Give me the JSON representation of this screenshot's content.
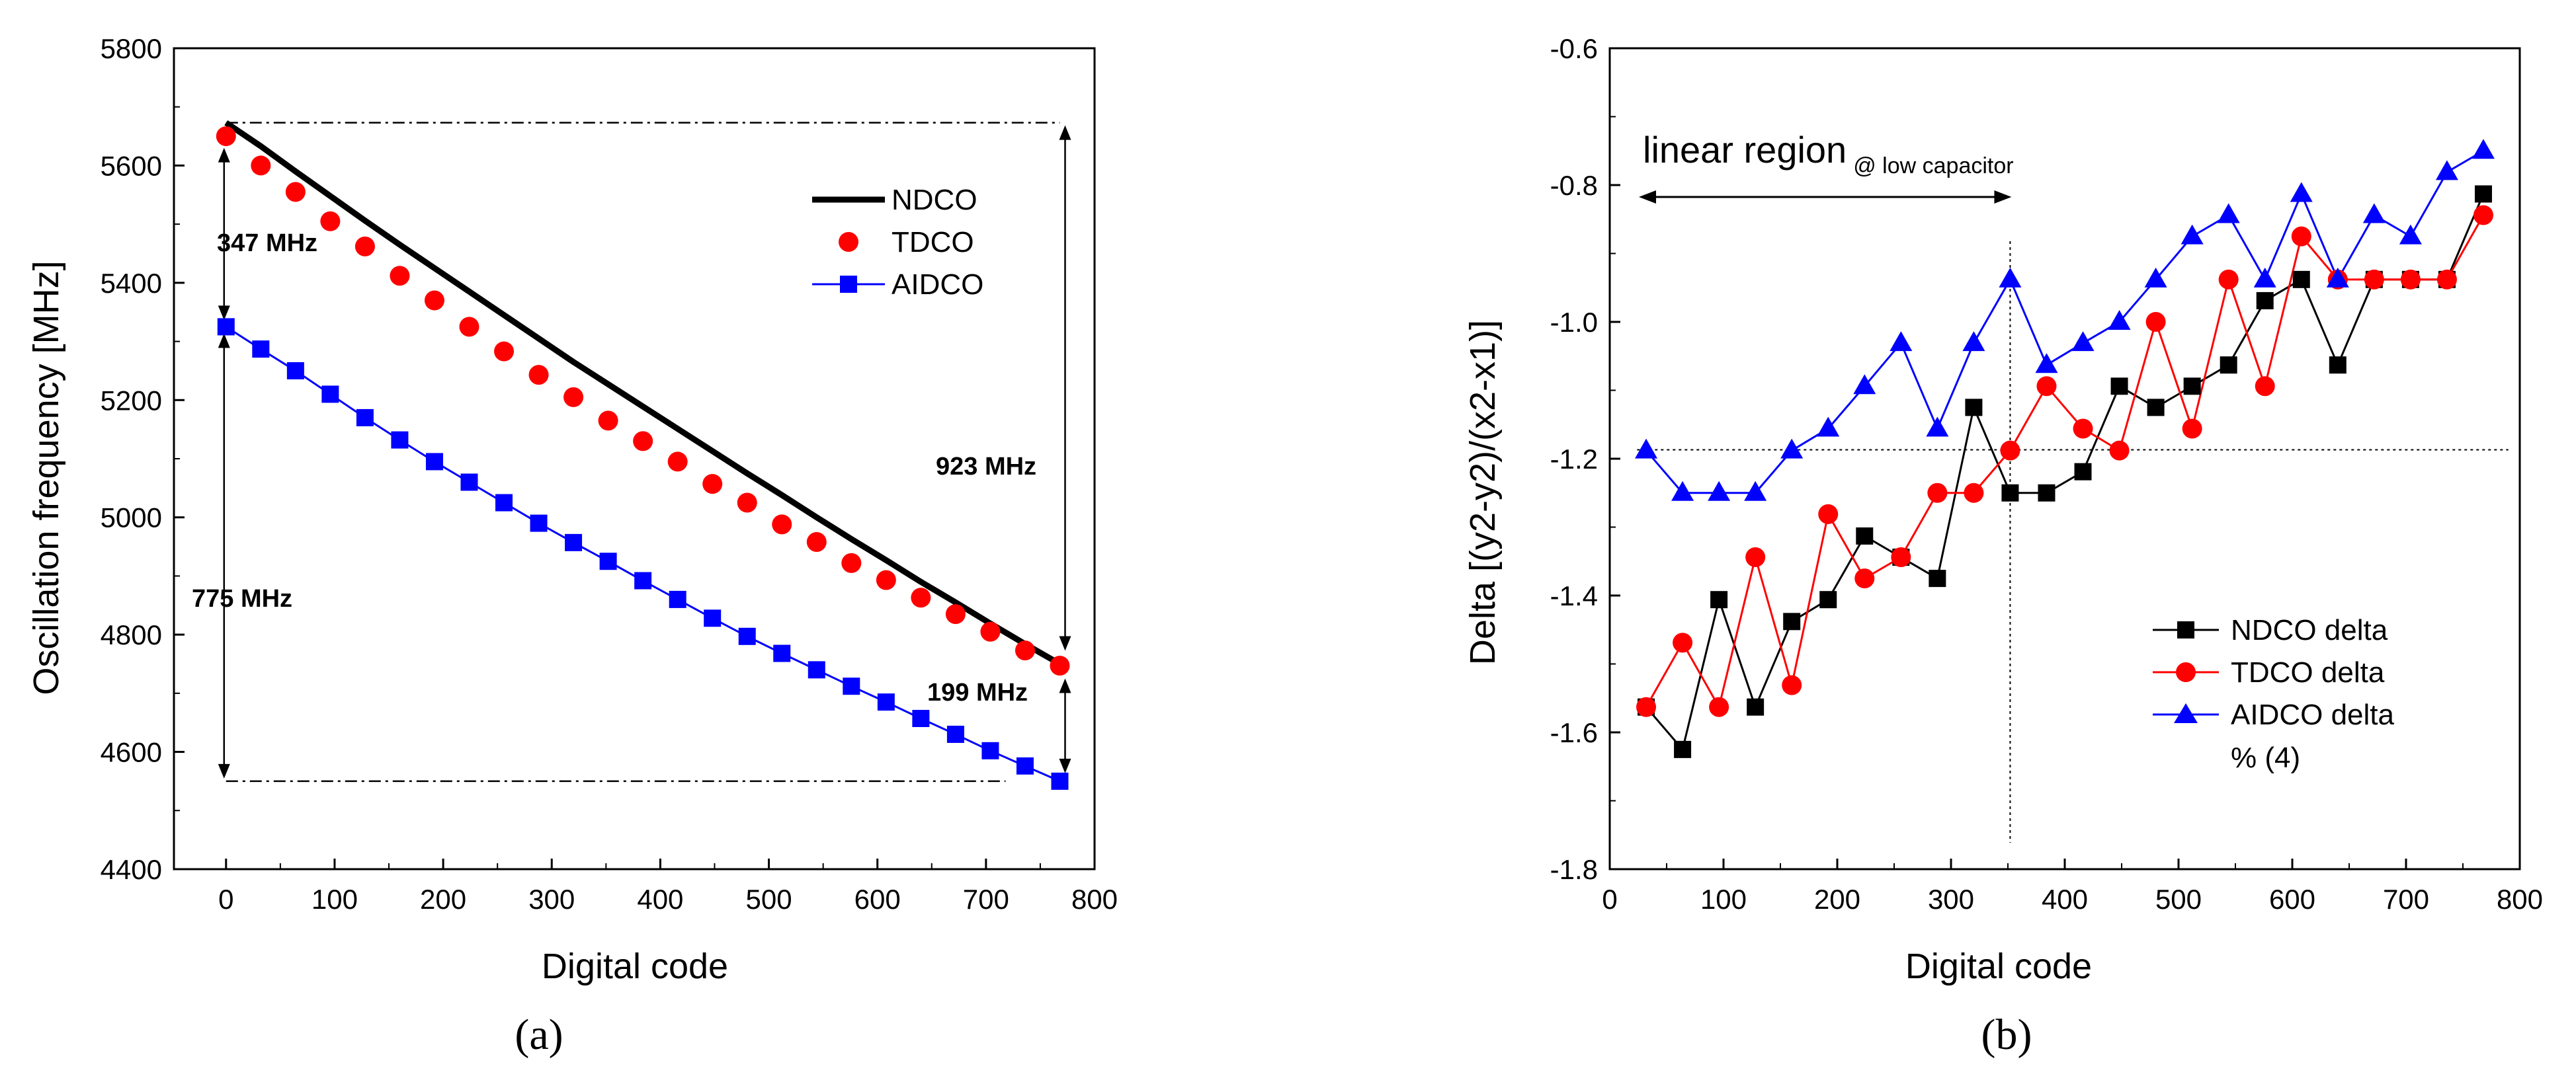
{
  "colors": {
    "ndco": "#000000",
    "tdco": "#ff0000",
    "aidco": "#0000ff",
    "axis": "#000000",
    "background": "#ffffff"
  },
  "chart_data": [
    {
      "type": "line",
      "panel_label": "(a)",
      "xlabel": "Digital code",
      "ylabel": "Oscillation frequency [MHz]",
      "xlim": [
        -48,
        800
      ],
      "ylim": [
        4400,
        5800
      ],
      "xticks": [
        0,
        100,
        200,
        300,
        400,
        500,
        600,
        700,
        800
      ],
      "yticks": [
        4400,
        4600,
        4800,
        5000,
        5200,
        5400,
        5600,
        5800
      ],
      "legend_position": "top-right",
      "x": [
        0,
        32,
        64,
        96,
        128,
        160,
        192,
        224,
        256,
        288,
        320,
        352,
        384,
        416,
        448,
        480,
        512,
        544,
        576,
        608,
        640,
        672,
        704,
        736,
        768
      ],
      "series": [
        {
          "name": "NDCO",
          "style": "line",
          "values": [
            5673,
            5633,
            5590,
            5548,
            5506,
            5465,
            5425,
            5385,
            5345,
            5305,
            5265,
            5227,
            5189,
            5151,
            5113,
            5075,
            5038,
            5000,
            4963,
            4927,
            4890,
            4855,
            4819,
            4784,
            4750
          ]
        },
        {
          "name": "TDCO",
          "style": "marker-circle",
          "values": [
            5650,
            5600,
            5555,
            5505,
            5462,
            5412,
            5370,
            5325,
            5283,
            5243,
            5205,
            5165,
            5130,
            5095,
            5057,
            5025,
            4988,
            4958,
            4922,
            4893,
            4863,
            4835,
            4805,
            4773,
            4747
          ]
        },
        {
          "name": "AIDCO",
          "style": "line-square",
          "values": [
            5325,
            5287,
            5250,
            5210,
            5170,
            5132,
            5095,
            5060,
            5025,
            4990,
            4957,
            4925,
            4892,
            4860,
            4828,
            4797,
            4768,
            4740,
            4712,
            4685,
            4657,
            4630,
            4602,
            4576,
            4550
          ]
        }
      ],
      "annotations": [
        {
          "text": "347 MHz",
          "from": 5673,
          "to": 5325
        },
        {
          "text": "775 MHz",
          "from": 5325,
          "to": 4550
        },
        {
          "text": "923 MHz",
          "from": 5673,
          "to": 4750
        },
        {
          "text": "199 MHz",
          "from": 4750,
          "to": 4550
        }
      ],
      "reference_lines": [
        {
          "style": "dash-dot",
          "y": 5673
        },
        {
          "style": "dash-dot",
          "y": 4550
        }
      ]
    },
    {
      "type": "line",
      "panel_label": "(b)",
      "xlabel": "Digital code",
      "ylabel": "Delta [(y2-y2)/(x2-x1)]",
      "xlim": [
        0,
        800
      ],
      "ylim": [
        -1.8,
        -0.6
      ],
      "xticks": [
        0,
        100,
        200,
        300,
        400,
        500,
        600,
        700,
        800
      ],
      "yticks": [
        -1.8,
        -1.6,
        -1.4,
        -1.2,
        -1.0,
        -0.8,
        -0.6
      ],
      "ytick_labels": [
        "-1.8",
        "-1.6",
        "-1.4",
        "-1.2",
        "-1.0",
        "-0.8",
        "-0.6"
      ],
      "legend_position": "bottom-right",
      "legend_note": "% (4)",
      "region_label": "linear region",
      "region_sublabel": "@ low capacitor",
      "region_x": [
        0,
        352
      ],
      "guide_x": 352,
      "guide_y": -1.187,
      "x": [
        32,
        64,
        96,
        128,
        160,
        192,
        224,
        256,
        288,
        320,
        352,
        384,
        416,
        448,
        480,
        512,
        544,
        576,
        608,
        640,
        672,
        704,
        736,
        768
      ],
      "series": [
        {
          "name": "NDCO delta",
          "style": "line-square",
          "values": [
            -1.563,
            -1.625,
            -1.406,
            -1.563,
            -1.438,
            -1.406,
            -1.313,
            -1.344,
            -1.375,
            -1.125,
            -1.25,
            -1.25,
            -1.219,
            -1.094,
            -1.125,
            -1.094,
            -1.063,
            -0.969,
            -0.938,
            -1.063,
            -0.938,
            -0.938,
            -0.938,
            -0.813
          ]
        },
        {
          "name": "TDCO delta",
          "style": "line-circle",
          "values": [
            -1.563,
            -1.469,
            -1.563,
            -1.344,
            -1.531,
            -1.281,
            -1.375,
            -1.344,
            -1.25,
            -1.25,
            -1.188,
            -1.094,
            -1.156,
            -1.188,
            -1.0,
            -1.156,
            -0.938,
            -1.094,
            -0.875,
            -0.938,
            -0.938,
            -0.938,
            -0.938,
            -0.844
          ]
        },
        {
          "name": "AIDCO delta",
          "style": "line-triangle",
          "values": [
            -1.188,
            -1.25,
            -1.25,
            -1.25,
            -1.188,
            -1.156,
            -1.094,
            -1.031,
            -1.156,
            -1.031,
            -0.938,
            -1.063,
            -1.031,
            -1.0,
            -0.938,
            -0.875,
            -0.844,
            -0.938,
            -0.813,
            -0.938,
            -0.844,
            -0.875,
            -0.781,
            -0.75
          ]
        }
      ]
    }
  ]
}
